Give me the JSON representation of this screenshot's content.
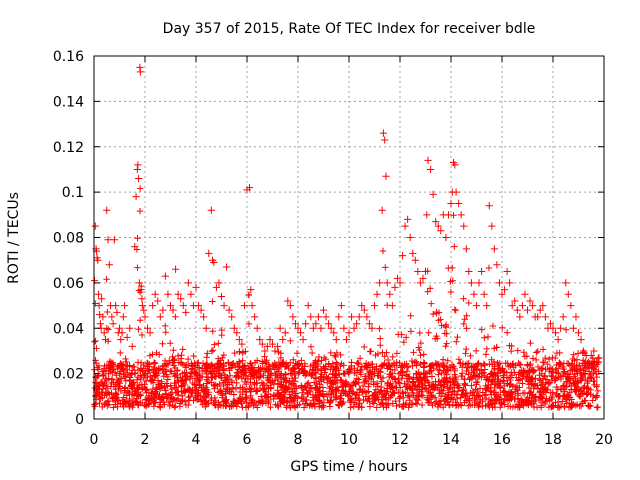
{
  "chart_data": {
    "type": "scatter",
    "title": "Day 357 of 2015, Rate Of TEC Index for receiver bdle",
    "xlabel": "GPS time / hours",
    "ylabel": "ROTI / TECUs",
    "xlim": [
      0,
      20
    ],
    "ylim": [
      0,
      0.16
    ],
    "xticks": [
      "0",
      "2",
      "4",
      "6",
      "8",
      "10",
      "12",
      "14",
      "16",
      "18",
      "20"
    ],
    "yticks": [
      "0",
      "0.02",
      "0.04",
      "0.06",
      "0.08",
      "0.1",
      "0.12",
      "0.14",
      "0.16"
    ],
    "grid": true,
    "marker": "+",
    "color": "#ff0000",
    "series": [
      {
        "x": [
          0.02,
          0.05,
          0.08,
          0.1,
          0.12,
          0.15,
          0.18,
          0.2,
          0.22,
          0.25,
          0.28,
          0.3,
          0.35,
          0.4,
          0.45,
          0.5,
          0.55,
          0.6,
          0.65,
          0.7,
          0.75,
          0.8,
          0.85,
          0.9,
          0.95,
          1.0,
          1.05,
          1.1,
          1.15,
          1.2,
          1.3,
          1.4,
          1.5,
          1.6,
          1.65,
          1.7,
          1.72,
          1.75,
          1.78,
          1.8,
          1.82,
          1.85,
          1.88,
          1.9,
          1.95,
          2.0,
          2.1,
          2.2,
          2.3,
          2.4,
          2.5,
          2.6,
          2.7,
          2.8,
          2.9,
          3.0,
          3.1,
          3.2,
          3.3,
          3.4,
          3.5,
          3.6,
          3.7,
          3.8,
          3.9,
          4.0,
          4.1,
          4.2,
          4.3,
          4.4,
          4.5,
          4.6,
          4.65,
          4.7,
          4.8,
          4.9,
          5.0,
          5.1,
          5.2,
          5.3,
          5.4,
          5.5,
          5.6,
          5.7,
          5.8,
          5.9,
          6.0,
          6.1,
          6.15,
          6.2,
          6.3,
          6.4,
          6.5,
          6.6,
          6.7,
          6.8,
          6.9,
          7.0,
          7.1,
          7.2,
          7.3,
          7.4,
          7.5,
          7.6,
          7.7,
          7.8,
          7.9,
          8.0,
          8.1,
          8.2,
          8.3,
          8.4,
          8.5,
          8.6,
          8.7,
          8.8,
          8.9,
          9.0,
          9.1,
          9.2,
          9.3,
          9.4,
          9.5,
          9.6,
          9.7,
          9.8,
          9.9,
          10.0,
          10.1,
          10.2,
          10.3,
          10.4,
          10.5,
          10.6,
          10.7,
          10.8,
          10.9,
          11.0,
          11.1,
          11.2,
          11.3,
          11.35,
          11.4,
          11.45,
          11.5,
          11.6,
          11.7,
          11.8,
          11.9,
          12.0,
          12.1,
          12.2,
          12.3,
          12.4,
          12.5,
          12.6,
          12.7,
          12.8,
          12.9,
          13.0,
          13.05,
          13.1,
          13.2,
          13.3,
          13.4,
          13.5,
          13.6,
          13.7,
          13.8,
          13.9,
          14.0,
          14.05,
          14.1,
          14.15,
          14.2,
          14.3,
          14.4,
          14.5,
          14.6,
          14.7,
          14.8,
          14.9,
          15.0,
          15.1,
          15.2,
          15.3,
          15.4,
          15.5,
          15.6,
          15.7,
          15.8,
          15.9,
          16.0,
          16.1,
          16.2,
          16.3,
          16.4,
          16.5,
          16.6,
          16.7,
          16.8,
          16.9,
          17.0,
          17.1,
          17.2,
          17.3,
          17.4,
          17.5,
          17.6,
          17.7,
          17.8,
          17.9,
          18.0,
          18.1,
          18.2,
          18.3,
          18.4,
          18.5,
          18.6,
          18.7,
          18.8,
          18.9,
          19.0,
          19.1,
          19.2,
          19.3,
          19.4,
          19.5,
          19.6,
          19.7,
          19.8
        ],
        "y": [
          0.061,
          0.085,
          0.075,
          0.074,
          0.071,
          0.07,
          0.055,
          0.05,
          0.046,
          0.042,
          0.04,
          0.053,
          0.045,
          0.038,
          0.035,
          0.092,
          0.079,
          0.068,
          0.05,
          0.045,
          0.042,
          0.079,
          0.05,
          0.047,
          0.038,
          0.04,
          0.035,
          0.038,
          0.045,
          0.05,
          0.036,
          0.04,
          0.032,
          0.076,
          0.098,
          0.11,
          0.112,
          0.106,
          0.06,
          0.155,
          0.153,
          0.057,
          0.053,
          0.05,
          0.048,
          0.045,
          0.04,
          0.038,
          0.05,
          0.055,
          0.052,
          0.045,
          0.048,
          0.063,
          0.055,
          0.05,
          0.048,
          0.066,
          0.055,
          0.053,
          0.05,
          0.047,
          0.06,
          0.055,
          0.05,
          0.058,
          0.05,
          0.048,
          0.045,
          0.04,
          0.073,
          0.092,
          0.07,
          0.069,
          0.058,
          0.06,
          0.054,
          0.05,
          0.067,
          0.048,
          0.045,
          0.04,
          0.038,
          0.035,
          0.033,
          0.05,
          0.101,
          0.102,
          0.057,
          0.05,
          0.045,
          0.04,
          0.035,
          0.033,
          0.03,
          0.032,
          0.035,
          0.033,
          0.03,
          0.032,
          0.04,
          0.035,
          0.038,
          0.052,
          0.05,
          0.045,
          0.042,
          0.04,
          0.038,
          0.035,
          0.042,
          0.05,
          0.045,
          0.04,
          0.042,
          0.045,
          0.04,
          0.048,
          0.045,
          0.042,
          0.04,
          0.038,
          0.035,
          0.045,
          0.05,
          0.04,
          0.035,
          0.038,
          0.045,
          0.04,
          0.042,
          0.045,
          0.05,
          0.048,
          0.045,
          0.042,
          0.04,
          0.05,
          0.055,
          0.06,
          0.092,
          0.126,
          0.123,
          0.107,
          0.06,
          0.055,
          0.05,
          0.058,
          0.062,
          0.06,
          0.072,
          0.085,
          0.088,
          0.08,
          0.073,
          0.07,
          0.065,
          0.06,
          0.062,
          0.065,
          0.09,
          0.114,
          0.11,
          0.099,
          0.087,
          0.085,
          0.083,
          0.09,
          0.08,
          0.09,
          0.095,
          0.1,
          0.113,
          0.112,
          0.1,
          0.095,
          0.09,
          0.085,
          0.075,
          0.065,
          0.06,
          0.055,
          0.05,
          0.06,
          0.065,
          0.055,
          0.05,
          0.094,
          0.085,
          0.075,
          0.068,
          0.06,
          0.055,
          0.057,
          0.065,
          0.06,
          0.05,
          0.052,
          0.048,
          0.045,
          0.05,
          0.055,
          0.048,
          0.052,
          0.05,
          0.045,
          0.045,
          0.048,
          0.05,
          0.045,
          0.04,
          0.042,
          0.04,
          0.038,
          0.035,
          0.04,
          0.045,
          0.06,
          0.055,
          0.05,
          0.04,
          0.045,
          0.038,
          0.035,
          0.03,
          0.028,
          0.025,
          0.028,
          0.03,
          0.025,
          0.027
        ]
      }
    ],
    "background_band": [
      0.005,
      0.025
    ]
  }
}
